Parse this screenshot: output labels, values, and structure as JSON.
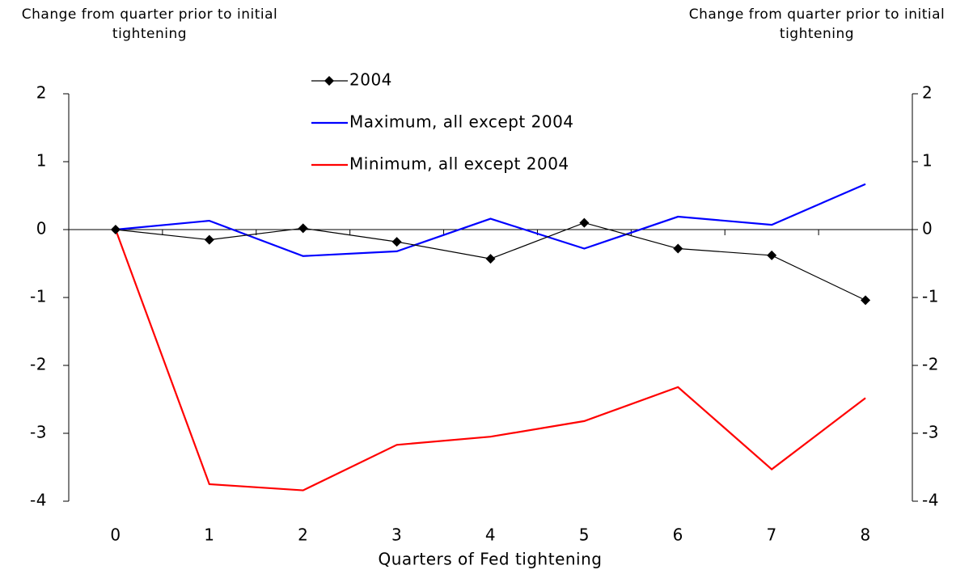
{
  "chart_data": {
    "type": "line",
    "y_label": "Change from quarter prior to initial tightening",
    "y2_label": "Change from quarter prior to initial tightening",
    "x_label": "Quarters of Fed tightening",
    "categories": [
      "0",
      "1",
      "2",
      "3",
      "4",
      "5",
      "6",
      "7",
      "8"
    ],
    "series": [
      {
        "name": "2004",
        "color": "#000000",
        "marker": "diamond",
        "values": [
          0,
          -0.15,
          0.02,
          -0.18,
          -0.43,
          0.1,
          -0.28,
          -0.38,
          -1.04
        ]
      },
      {
        "name": "Maximum, all except 2004",
        "color": "#0000ff",
        "values": [
          0,
          0.13,
          -0.39,
          -0.32,
          0.16,
          -0.28,
          0.19,
          0.07,
          0.67
        ]
      },
      {
        "name": "Minimum, all except 2004",
        "color": "#ff0000",
        "values": [
          0,
          -3.75,
          -3.84,
          -3.17,
          -3.05,
          -2.82,
          -2.32,
          -3.53,
          -2.48
        ]
      }
    ],
    "ylim": [
      -4,
      2
    ],
    "yticks": [
      2,
      1,
      0,
      -1,
      -2,
      -3,
      -4
    ],
    "y2lim": [
      -4,
      2
    ],
    "y2ticks": [
      2,
      1,
      0,
      -1,
      -2,
      -3,
      -4
    ],
    "grid": false
  }
}
